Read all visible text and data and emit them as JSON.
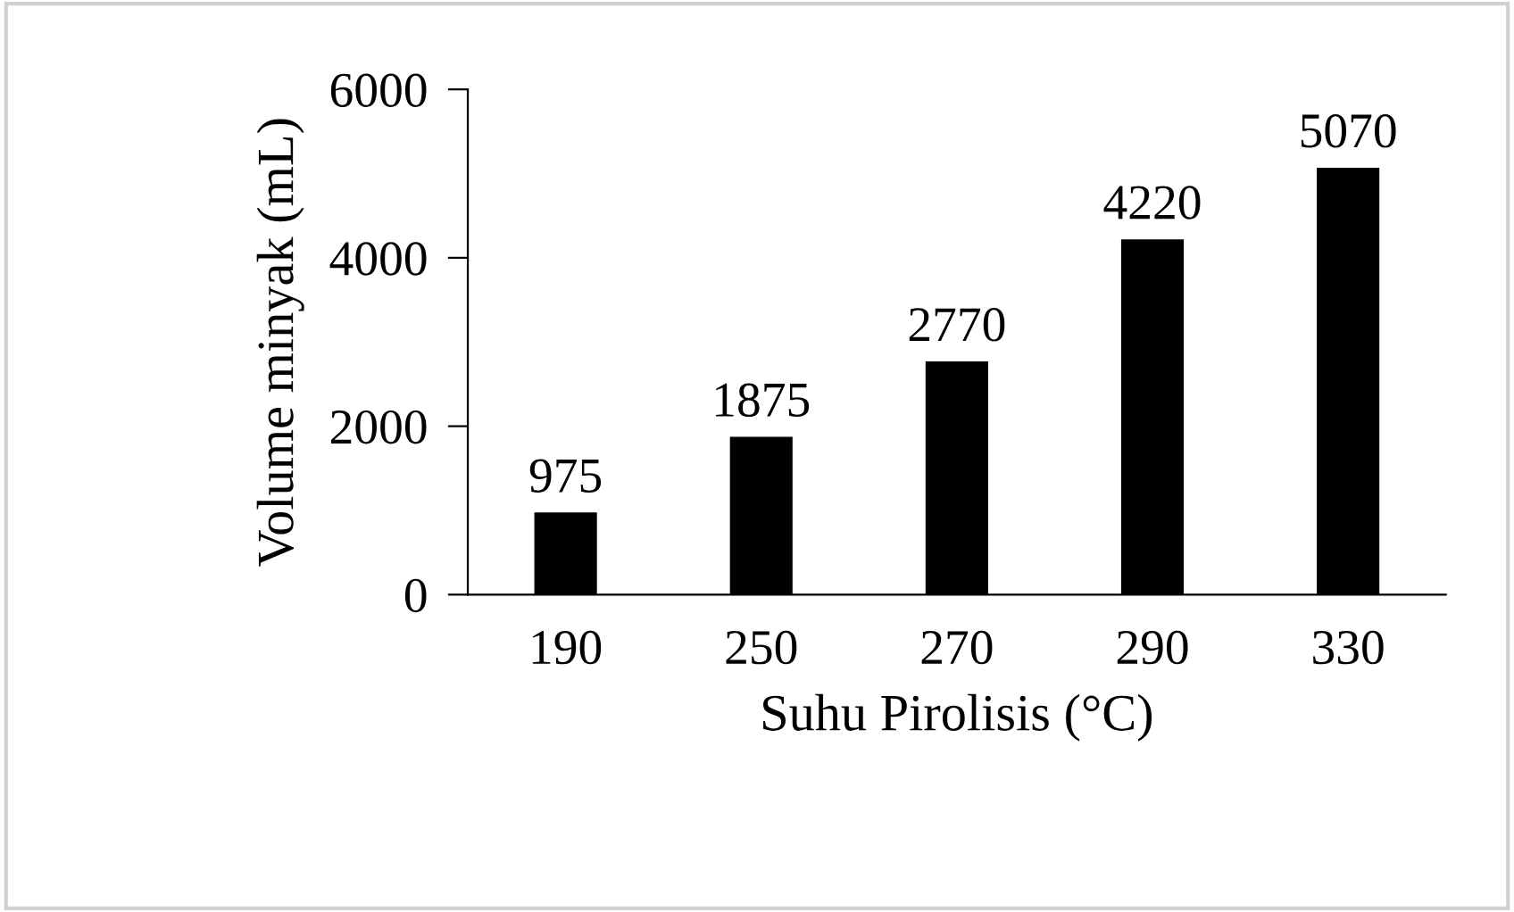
{
  "chart_data": {
    "type": "bar",
    "xlabel": "Suhu Pirolisis (°C)",
    "ylabel": "Volume minyak (mL)",
    "categories": [
      "190",
      "250",
      "270",
      "290",
      "330"
    ],
    "values": [
      975,
      1875,
      2770,
      4220,
      5070
    ],
    "color": "#000000",
    "ylim": [
      0,
      6000
    ],
    "yticks": [
      0,
      2000,
      4000,
      6000
    ],
    "data_labels": true,
    "grid": false,
    "legend": false
  }
}
